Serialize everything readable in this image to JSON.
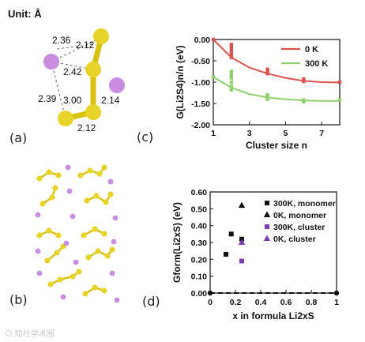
{
  "panel_a": {
    "unit_label": "Unit: Å",
    "bond_labels": [
      "2.36",
      "2.12",
      "2.42",
      "2.14",
      "2.39",
      "3.00",
      "2.12"
    ],
    "label": "(a)"
  },
  "panel_b": {
    "label": "(b)"
  },
  "panel_c": {
    "label": "(c)"
  },
  "panel_d": {
    "label": "(d)"
  },
  "colors": {
    "sulfur": "#e6d21a",
    "lithium": "#c98de0",
    "red": "#d9534f",
    "green": "#8fd16a",
    "black": "#111111",
    "purple": "#7a3fb3"
  },
  "chart_data": [
    {
      "type": "line",
      "panel": "(c)",
      "xlabel": "Cluster size n",
      "ylabel": "G(Li2S4)n/n (eV)",
      "xlim": [
        1,
        8
      ],
      "ylim": [
        -2.0,
        0.0
      ],
      "xticks": [
        "1",
        "3",
        "5",
        "7"
      ],
      "yticks": [
        "0.00",
        "-0.50",
        "-1.00",
        "-1.50",
        "-2.00"
      ],
      "legend_placement": "top-right",
      "series": [
        {
          "name": "0 K",
          "color": "#d9534f",
          "points": [
            [
              1,
              0.0
            ],
            [
              2,
              -0.12
            ],
            [
              2,
              -0.18
            ],
            [
              2,
              -0.24
            ],
            [
              2,
              -0.3
            ],
            [
              2,
              -0.36
            ],
            [
              2,
              -0.42
            ],
            [
              4,
              -0.7
            ],
            [
              4,
              -0.75
            ],
            [
              4,
              -0.8
            ],
            [
              6,
              -0.93
            ],
            [
              6,
              -0.98
            ],
            [
              8,
              -1.0
            ]
          ],
          "fit": [
            [
              1,
              0.0
            ],
            [
              2,
              -0.42
            ],
            [
              3,
              -0.66
            ],
            [
              4,
              -0.8
            ],
            [
              5,
              -0.9
            ],
            [
              6,
              -0.97
            ],
            [
              7,
              -1.0
            ],
            [
              8,
              -1.01
            ]
          ]
        },
        {
          "name": "300 K",
          "color": "#8fd16a",
          "points": [
            [
              1,
              -0.88
            ],
            [
              2,
              -0.75
            ],
            [
              2,
              -0.82
            ],
            [
              2,
              -0.9
            ],
            [
              2,
              -1.0
            ],
            [
              2,
              -1.1
            ],
            [
              2,
              -1.18
            ],
            [
              4,
              -1.3
            ],
            [
              4,
              -1.35
            ],
            [
              4,
              -1.4
            ],
            [
              6,
              -1.42
            ],
            [
              6,
              -1.46
            ],
            [
              8,
              -1.42
            ]
          ],
          "fit": [
            [
              1,
              -0.88
            ],
            [
              2,
              -1.13
            ],
            [
              3,
              -1.28
            ],
            [
              4,
              -1.36
            ],
            [
              5,
              -1.4
            ],
            [
              6,
              -1.43
            ],
            [
              7,
              -1.44
            ],
            [
              8,
              -1.44
            ]
          ]
        }
      ]
    },
    {
      "type": "scatter",
      "panel": "(d)",
      "xlabel": "x in formula Li2xS",
      "ylabel": "Gform(Li2xS) (eV)",
      "xlim": [
        0,
        1
      ],
      "ylim": [
        0,
        0.6
      ],
      "xticks": [
        "0",
        "0.2",
        "0.4",
        "0.6",
        "0.8",
        "1"
      ],
      "yticks": [
        "0.60",
        "0.50",
        "0.40",
        "0.30",
        "0.20",
        "0.10",
        "0.00"
      ],
      "legend_placement": "top-right",
      "series": [
        {
          "name": "300K, monomer",
          "marker": "square",
          "color": "#111111",
          "points": [
            [
              0.125,
              0.23
            ],
            [
              0.167,
              0.35
            ],
            [
              0.25,
              0.32
            ]
          ]
        },
        {
          "name": "0K, monomer",
          "marker": "triangle",
          "color": "#111111",
          "points": [
            [
              0.25,
              0.52
            ]
          ]
        },
        {
          "name": "300K, cluster",
          "marker": "square",
          "color": "#7a3fb3",
          "points": [
            [
              0.25,
              0.19
            ]
          ]
        },
        {
          "name": "0K, cluster",
          "marker": "triangle",
          "color": "#7a3fb3",
          "points": [
            [
              0.25,
              0.3
            ]
          ]
        }
      ],
      "reference_line": {
        "y": 0.0,
        "style": "dashed",
        "endpoints": [
          [
            0,
            0.0
          ],
          [
            1,
            0.0
          ]
        ]
      }
    }
  ]
}
